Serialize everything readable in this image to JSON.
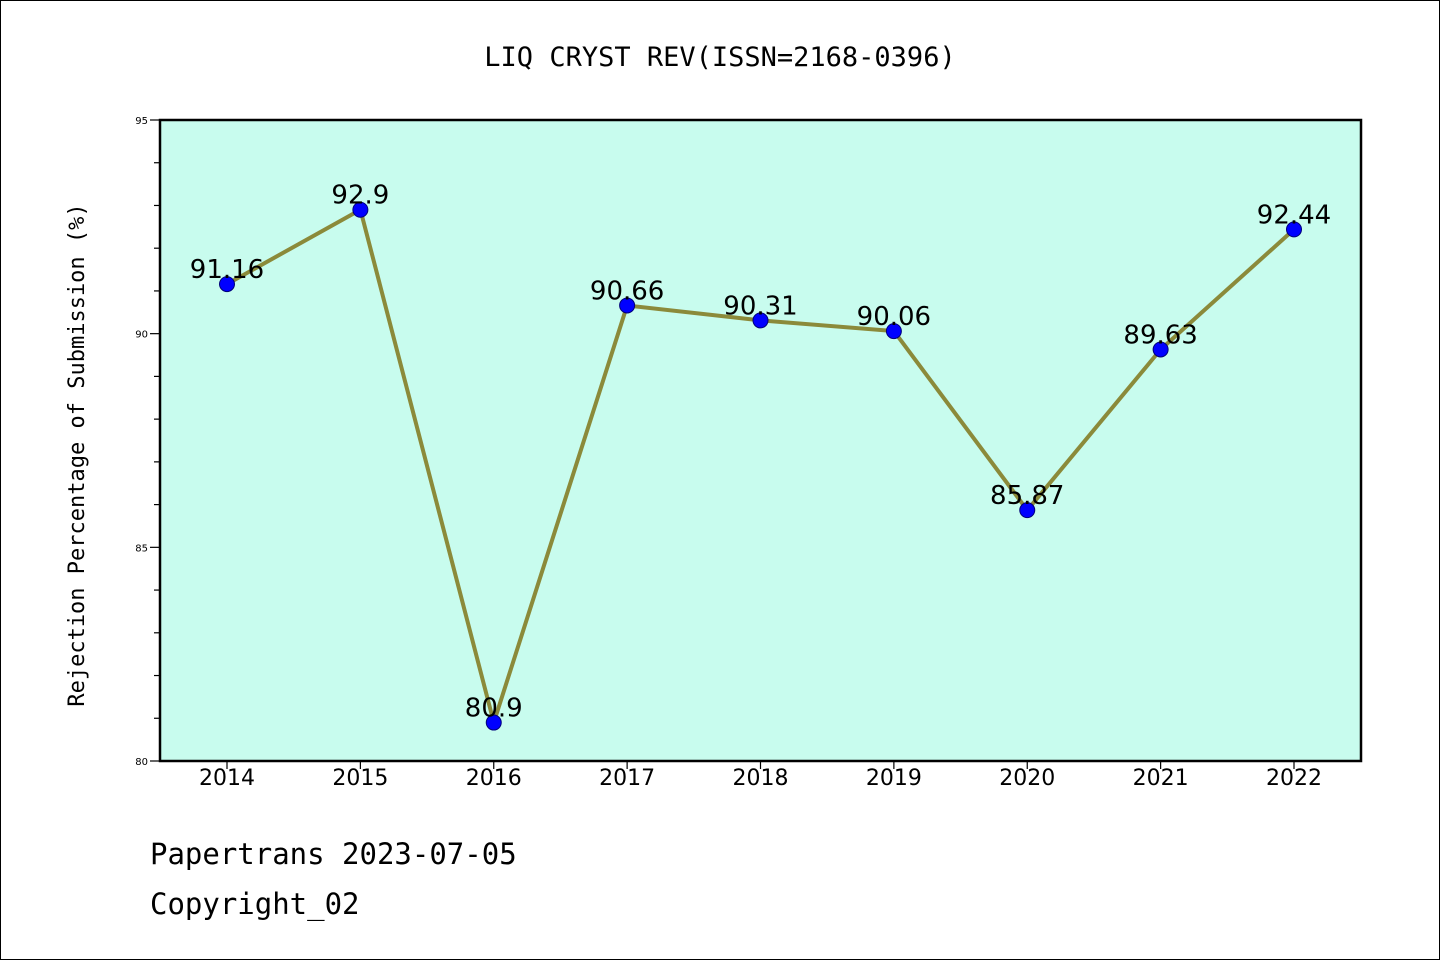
{
  "chart_data": {
    "type": "line",
    "title": "LIQ CRYST REV(ISSN=2168-0396)",
    "ylabel": "Rejection Percentage of Submission (%)",
    "xlabel": "",
    "categories": [
      "2014",
      "2015",
      "2016",
      "2017",
      "2018",
      "2019",
      "2020",
      "2021",
      "2022"
    ],
    "values": [
      91.16,
      92.9,
      80.9,
      90.66,
      90.31,
      90.06,
      85.87,
      89.63,
      92.44
    ],
    "data_labels": [
      "91.16",
      "92.9",
      "80.9",
      "90.66",
      "90.31",
      "90.06",
      "85.87",
      "89.63",
      "92.44"
    ],
    "ylim": [
      80,
      95
    ],
    "yticks": [
      "80",
      "85",
      "90",
      "95"
    ],
    "grid": false,
    "colors": {
      "plot_background": "#c8fcee",
      "line": "#8b8a3a",
      "marker": "#0000ff"
    }
  },
  "footer": {
    "line1": "Papertrans 2023-07-05",
    "line2": "Copyright_02"
  }
}
